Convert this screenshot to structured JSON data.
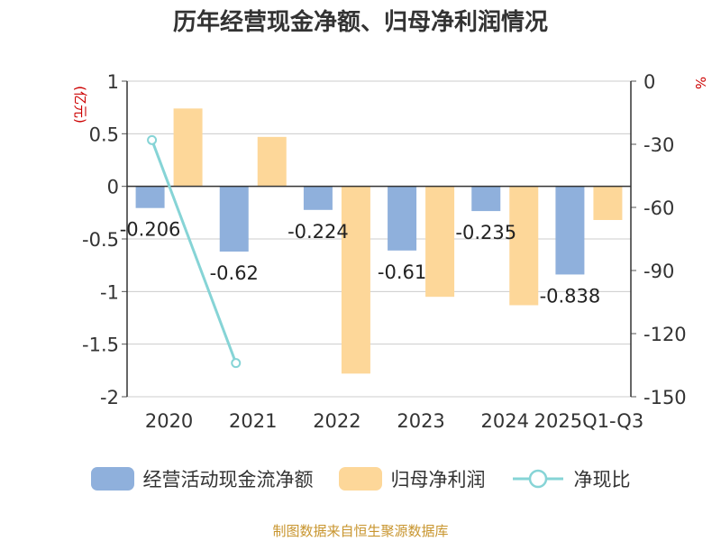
{
  "colors": {
    "cashflow": "#8fb0dc",
    "profit": "#fdd799",
    "ratio": "#86d4d6",
    "axis_unit": "#cc0000",
    "source": "#c8952e"
  },
  "chart_data": {
    "type": "bar",
    "title": "历年经营现金净额、归母净利润情况",
    "categories": [
      "2020",
      "2021",
      "2022",
      "2023",
      "2024",
      "2025Q1-Q3"
    ],
    "series": [
      {
        "name": "经营活动现金流净额",
        "type": "bar",
        "axis": "left",
        "values": [
          -0.206,
          -0.62,
          -0.224,
          -0.61,
          -0.235,
          -0.838
        ],
        "labels": [
          "-0.206",
          "-0.62",
          "-0.224",
          "-0.61",
          "-0.235",
          "-0.838"
        ]
      },
      {
        "name": "归母净利润",
        "type": "bar",
        "axis": "left",
        "values": [
          0.74,
          0.47,
          -1.78,
          -1.05,
          -1.13,
          -0.32
        ]
      },
      {
        "name": "净现比",
        "type": "line",
        "axis": "right",
        "values": [
          -28,
          -134,
          null,
          null,
          null,
          null
        ]
      }
    ],
    "left_axis": {
      "label": "(亿元)",
      "min": -2,
      "max": 1,
      "ticks": [
        1,
        0.5,
        0,
        -0.5,
        -1,
        -1.5,
        -2
      ],
      "tick_labels": [
        "1",
        "0.5",
        "0",
        "-0.5",
        "-1",
        "-1.5",
        "-2"
      ]
    },
    "right_axis": {
      "label": "%",
      "min": -150,
      "max": 0,
      "ticks": [
        0,
        -30,
        -60,
        -90,
        -120,
        -150
      ],
      "tick_labels": [
        "0",
        "-30",
        "-60",
        "-90",
        "-120",
        "-150"
      ]
    },
    "grid": true,
    "legend_position": "bottom"
  },
  "source": "制图数据来自恒生聚源数据库"
}
